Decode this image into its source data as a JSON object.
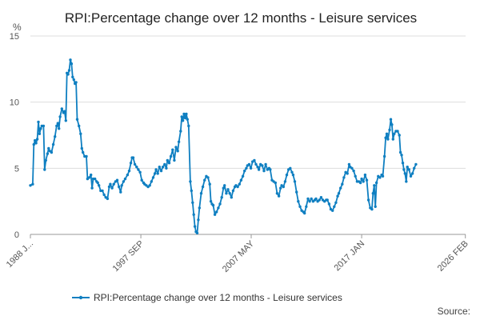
{
  "chart_data": {
    "type": "line",
    "title": "RPI:Percentage change over 12 months - Leisure services",
    "ylabel": "%",
    "xlabel": "",
    "ylim": [
      0,
      15
    ],
    "yticks": [
      0,
      5,
      10,
      15
    ],
    "xlim": [
      1988.0,
      2026.1
    ],
    "xticks": [
      {
        "label": "1988 J...",
        "x": 1988.0
      },
      {
        "label": "1997 SEP",
        "x": 1997.67
      },
      {
        "label": "2007 MAY",
        "x": 2007.33
      },
      {
        "label": "2017 JAN",
        "x": 2017.0
      },
      {
        "label": "2026 FEB",
        "x": 2026.08
      }
    ],
    "grid": true,
    "legend": "bottom",
    "color": "#0f7fc1",
    "series": [
      {
        "name": "RPI:Percentage change over 12 months - Leisure services",
        "points": [
          [
            1988.0,
            3.7
          ],
          [
            1988.2,
            3.8
          ],
          [
            1988.3,
            6.8
          ],
          [
            1988.4,
            7.1
          ],
          [
            1988.5,
            6.9
          ],
          [
            1988.6,
            7.2
          ],
          [
            1988.7,
            8.5
          ],
          [
            1988.8,
            7.6
          ],
          [
            1988.9,
            8.0
          ],
          [
            1989.0,
            8.2
          ],
          [
            1989.15,
            8.2
          ],
          [
            1989.25,
            4.9
          ],
          [
            1989.35,
            5.6
          ],
          [
            1989.5,
            6.1
          ],
          [
            1989.6,
            6.5
          ],
          [
            1989.7,
            6.3
          ],
          [
            1989.85,
            6.2
          ],
          [
            1990.0,
            6.8
          ],
          [
            1990.15,
            7.4
          ],
          [
            1990.3,
            8.2
          ],
          [
            1990.4,
            8.4
          ],
          [
            1990.5,
            8.0
          ],
          [
            1990.6,
            8.9
          ],
          [
            1990.75,
            9.5
          ],
          [
            1990.9,
            9.2
          ],
          [
            1991.0,
            9.3
          ],
          [
            1991.1,
            8.6
          ],
          [
            1991.2,
            12.2
          ],
          [
            1991.3,
            12.1
          ],
          [
            1991.4,
            12.4
          ],
          [
            1991.5,
            13.2
          ],
          [
            1991.6,
            12.9
          ],
          [
            1991.7,
            11.9
          ],
          [
            1991.8,
            11.7
          ],
          [
            1991.9,
            11.4
          ],
          [
            1992.0,
            11.5
          ],
          [
            1992.1,
            8.7
          ],
          [
            1992.25,
            8.2
          ],
          [
            1992.4,
            7.6
          ],
          [
            1992.5,
            6.5
          ],
          [
            1992.6,
            6.2
          ],
          [
            1992.75,
            5.9
          ],
          [
            1992.9,
            5.9
          ],
          [
            1993.0,
            4.2
          ],
          [
            1993.15,
            4.3
          ],
          [
            1993.3,
            4.5
          ],
          [
            1993.4,
            3.5
          ],
          [
            1993.5,
            4.2
          ],
          [
            1993.65,
            4.2
          ],
          [
            1993.8,
            4.0
          ],
          [
            1993.9,
            3.9
          ],
          [
            1994.0,
            3.7
          ],
          [
            1994.15,
            3.3
          ],
          [
            1994.3,
            3.3
          ],
          [
            1994.45,
            3.0
          ],
          [
            1994.6,
            2.8
          ],
          [
            1994.75,
            2.7
          ],
          [
            1994.9,
            3.6
          ],
          [
            1995.0,
            3.8
          ],
          [
            1995.15,
            3.5
          ],
          [
            1995.3,
            3.8
          ],
          [
            1995.45,
            4.0
          ],
          [
            1995.6,
            4.1
          ],
          [
            1995.75,
            3.6
          ],
          [
            1995.9,
            3.2
          ],
          [
            1996.0,
            3.7
          ],
          [
            1996.15,
            4.0
          ],
          [
            1996.3,
            4.2
          ],
          [
            1996.5,
            4.5
          ],
          [
            1996.65,
            4.8
          ],
          [
            1996.8,
            5.4
          ],
          [
            1996.9,
            5.8
          ],
          [
            1997.0,
            5.8
          ],
          [
            1997.15,
            5.3
          ],
          [
            1997.3,
            5.1
          ],
          [
            1997.45,
            4.9
          ],
          [
            1997.6,
            4.7
          ],
          [
            1997.75,
            4.1
          ],
          [
            1997.9,
            3.9
          ],
          [
            1998.0,
            3.8
          ],
          [
            1998.15,
            3.7
          ],
          [
            1998.3,
            3.6
          ],
          [
            1998.45,
            3.7
          ],
          [
            1998.6,
            4.0
          ],
          [
            1998.75,
            4.3
          ],
          [
            1998.9,
            4.6
          ],
          [
            1999.0,
            4.9
          ],
          [
            1999.15,
            4.6
          ],
          [
            1999.3,
            5.1
          ],
          [
            1999.45,
            4.8
          ],
          [
            1999.6,
            5.1
          ],
          [
            1999.75,
            5.3
          ],
          [
            1999.9,
            5.0
          ],
          [
            2000.0,
            5.6
          ],
          [
            2000.15,
            5.4
          ],
          [
            2000.3,
            5.9
          ],
          [
            2000.45,
            6.4
          ],
          [
            2000.6,
            5.6
          ],
          [
            2000.75,
            6.6
          ],
          [
            2000.9,
            6.3
          ],
          [
            2001.0,
            7.0
          ],
          [
            2001.15,
            7.8
          ],
          [
            2001.25,
            8.9
          ],
          [
            2001.35,
            8.6
          ],
          [
            2001.45,
            9.1
          ],
          [
            2001.55,
            8.8
          ],
          [
            2001.65,
            9.1
          ],
          [
            2001.75,
            8.7
          ],
          [
            2001.85,
            8.2
          ],
          [
            2002.0,
            4.0
          ],
          [
            2002.1,
            3.3
          ],
          [
            2002.2,
            2.4
          ],
          [
            2002.3,
            1.5
          ],
          [
            2002.4,
            0.6
          ],
          [
            2002.5,
            0.2
          ],
          [
            2002.6,
            0.1
          ],
          [
            2002.7,
            1.1
          ],
          [
            2002.8,
            2.0
          ],
          [
            2002.95,
            3.1
          ],
          [
            2003.1,
            3.6
          ],
          [
            2003.25,
            4.1
          ],
          [
            2003.4,
            4.4
          ],
          [
            2003.55,
            4.3
          ],
          [
            2003.7,
            3.8
          ],
          [
            2003.8,
            2.5
          ],
          [
            2003.9,
            2.3
          ],
          [
            2004.0,
            2.2
          ],
          [
            2004.15,
            1.5
          ],
          [
            2004.3,
            1.7
          ],
          [
            2004.45,
            2.0
          ],
          [
            2004.6,
            2.3
          ],
          [
            2004.75,
            2.8
          ],
          [
            2004.9,
            3.5
          ],
          [
            2005.0,
            3.7
          ],
          [
            2005.15,
            3.1
          ],
          [
            2005.3,
            3.4
          ],
          [
            2005.45,
            3.1
          ],
          [
            2005.6,
            2.8
          ],
          [
            2005.75,
            3.3
          ],
          [
            2005.9,
            3.6
          ],
          [
            2006.0,
            3.7
          ],
          [
            2006.15,
            3.6
          ],
          [
            2006.3,
            3.8
          ],
          [
            2006.45,
            4.1
          ],
          [
            2006.6,
            4.4
          ],
          [
            2006.75,
            4.8
          ],
          [
            2006.9,
            5.0
          ],
          [
            2007.0,
            5.2
          ],
          [
            2007.15,
            5.3
          ],
          [
            2007.3,
            5.0
          ],
          [
            2007.45,
            5.5
          ],
          [
            2007.6,
            5.6
          ],
          [
            2007.75,
            5.3
          ],
          [
            2007.9,
            5.1
          ],
          [
            2008.0,
            4.9
          ],
          [
            2008.15,
            5.3
          ],
          [
            2008.3,
            5.2
          ],
          [
            2008.45,
            4.8
          ],
          [
            2008.6,
            5.3
          ],
          [
            2008.75,
            4.9
          ],
          [
            2008.9,
            5.0
          ],
          [
            2009.0,
            4.9
          ],
          [
            2009.15,
            4.1
          ],
          [
            2009.3,
            4.0
          ],
          [
            2009.45,
            3.9
          ],
          [
            2009.6,
            3.1
          ],
          [
            2009.75,
            2.9
          ],
          [
            2009.9,
            3.5
          ],
          [
            2010.0,
            3.7
          ],
          [
            2010.15,
            3.6
          ],
          [
            2010.3,
            4.0
          ],
          [
            2010.45,
            4.5
          ],
          [
            2010.6,
            4.9
          ],
          [
            2010.75,
            5.0
          ],
          [
            2010.9,
            4.7
          ],
          [
            2011.0,
            4.5
          ],
          [
            2011.15,
            4.0
          ],
          [
            2011.3,
            3.2
          ],
          [
            2011.45,
            2.5
          ],
          [
            2011.6,
            2.1
          ],
          [
            2011.75,
            1.8
          ],
          [
            2011.9,
            1.7
          ],
          [
            2012.0,
            1.6
          ],
          [
            2012.15,
            2.1
          ],
          [
            2012.3,
            2.7
          ],
          [
            2012.45,
            2.5
          ],
          [
            2012.6,
            2.7
          ],
          [
            2012.75,
            2.5
          ],
          [
            2012.9,
            2.6
          ],
          [
            2013.0,
            2.7
          ],
          [
            2013.15,
            2.5
          ],
          [
            2013.3,
            2.6
          ],
          [
            2013.45,
            2.8
          ],
          [
            2013.6,
            2.6
          ],
          [
            2013.75,
            2.5
          ],
          [
            2013.9,
            2.6
          ],
          [
            2014.0,
            2.6
          ],
          [
            2014.15,
            2.3
          ],
          [
            2014.3,
            1.9
          ],
          [
            2014.45,
            1.8
          ],
          [
            2014.6,
            2.1
          ],
          [
            2014.75,
            2.4
          ],
          [
            2014.9,
            2.9
          ],
          [
            2015.0,
            3.1
          ],
          [
            2015.15,
            3.5
          ],
          [
            2015.3,
            3.8
          ],
          [
            2015.45,
            4.3
          ],
          [
            2015.6,
            4.7
          ],
          [
            2015.75,
            4.6
          ],
          [
            2015.9,
            5.3
          ],
          [
            2016.0,
            5.1
          ],
          [
            2016.15,
            5.0
          ],
          [
            2016.3,
            4.8
          ],
          [
            2016.45,
            4.4
          ],
          [
            2016.6,
            4.0
          ],
          [
            2016.75,
            4.0
          ],
          [
            2016.9,
            3.9
          ],
          [
            2017.0,
            4.2
          ],
          [
            2017.15,
            4.0
          ],
          [
            2017.3,
            4.5
          ],
          [
            2017.45,
            4.1
          ],
          [
            2017.6,
            2.6
          ],
          [
            2017.75,
            2.0
          ],
          [
            2017.9,
            1.9
          ],
          [
            2018.0,
            3.1
          ],
          [
            2018.1,
            3.7
          ],
          [
            2018.2,
            2.1
          ],
          [
            2018.3,
            3.9
          ],
          [
            2018.45,
            4.4
          ],
          [
            2018.6,
            4.3
          ],
          [
            2018.75,
            4.5
          ],
          [
            2018.85,
            4.4
          ],
          [
            2019.0,
            5.9
          ],
          [
            2019.1,
            7.3
          ],
          [
            2019.2,
            7.6
          ],
          [
            2019.3,
            7.2
          ],
          [
            2019.45,
            7.9
          ],
          [
            2019.55,
            8.7
          ],
          [
            2019.65,
            8.3
          ],
          [
            2019.75,
            7.2
          ],
          [
            2019.85,
            7.6
          ],
          [
            2020.0,
            7.8
          ],
          [
            2020.15,
            7.8
          ],
          [
            2020.3,
            7.5
          ],
          [
            2020.4,
            6.2
          ],
          [
            2020.5,
            6.0
          ],
          [
            2020.6,
            5.4
          ],
          [
            2020.7,
            4.9
          ],
          [
            2020.8,
            4.6
          ],
          [
            2020.9,
            4.0
          ],
          [
            2021.0,
            5.1
          ],
          [
            2021.15,
            4.9
          ],
          [
            2021.3,
            4.4
          ],
          [
            2021.45,
            4.6
          ],
          [
            2021.6,
            5.0
          ],
          [
            2021.75,
            5.3
          ]
        ]
      }
    ],
    "source_label": "Source:"
  }
}
